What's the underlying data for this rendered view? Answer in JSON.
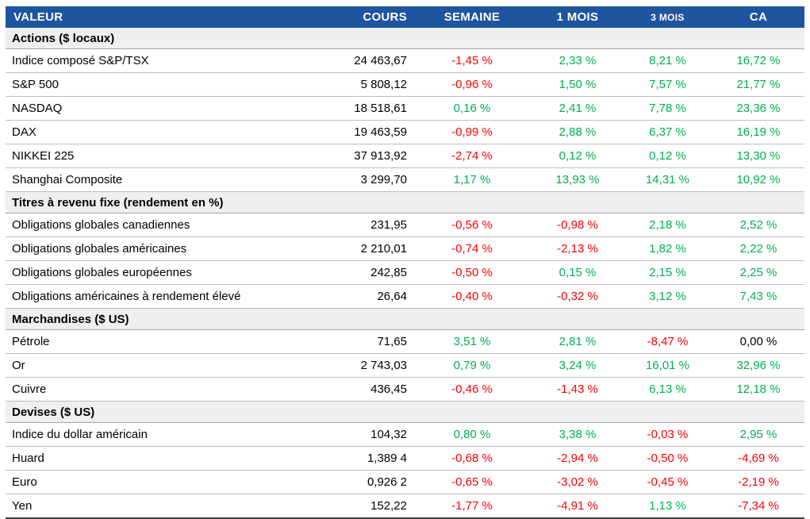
{
  "colors": {
    "header_bg": "#1F549E",
    "section_bg": "#EFEFEF",
    "positive": "#00B050",
    "negative": "#FF0000",
    "neutral": "#000000"
  },
  "table": {
    "columns": [
      {
        "key": "valeur",
        "label": "VALEUR"
      },
      {
        "key": "cours",
        "label": "COURS"
      },
      {
        "key": "semaine",
        "label": "SEMAINE"
      },
      {
        "key": "1-mois",
        "label": "1 MOIS"
      },
      {
        "key": "3-mois",
        "label": "3 MOIS"
      },
      {
        "key": "ca",
        "label": "CA"
      }
    ],
    "sections": [
      {
        "title": "Actions ($ locaux)",
        "rows": [
          {
            "label": "Indice composé S&P/TSX",
            "cours": "24 463,67",
            "changes": [
              "-1,45 %",
              "2,33 %",
              "8,21 %",
              "16,72 %"
            ]
          },
          {
            "label": "S&P 500",
            "cours": "5 808,12",
            "changes": [
              "-0,96 %",
              "1,50 %",
              "7,57 %",
              "21,77 %"
            ]
          },
          {
            "label": "NASDAQ",
            "cours": "18 518,61",
            "changes": [
              "0,16 %",
              "2,41 %",
              "7,78 %",
              "23,36 %"
            ]
          },
          {
            "label": "DAX",
            "cours": "19 463,59",
            "changes": [
              "-0,99 %",
              "2,88 %",
              "6,37 %",
              "16,19 %"
            ]
          },
          {
            "label": "NIKKEI 225",
            "cours": "37 913,92",
            "changes": [
              "-2,74 %",
              "0,12 %",
              "0,12 %",
              "13,30 %"
            ]
          },
          {
            "label": "Shanghai Composite",
            "cours": "3 299,70",
            "changes": [
              "1,17 %",
              "13,93 %",
              "14,31 %",
              "10,92 %"
            ]
          }
        ]
      },
      {
        "title": "Titres à revenu fixe (rendement en %)",
        "rows": [
          {
            "label": "Obligations globales canadiennes",
            "cours": "231,95",
            "changes": [
              "-0,56 %",
              "-0,98 %",
              "2,18 %",
              "2,52 %"
            ]
          },
          {
            "label": "Obligations globales américaines",
            "cours": "2 210,01",
            "changes": [
              "-0,74 %",
              "-2,13 %",
              "1,82 %",
              "2,22 %"
            ]
          },
          {
            "label": "Obligations globales européennes",
            "cours": "242,85",
            "changes": [
              "-0,50 %",
              "0,15 %",
              "2,15 %",
              "2,25 %"
            ]
          },
          {
            "label": "Obligations américaines à rendement élevé",
            "cours": "26,64",
            "changes": [
              "-0,40 %",
              "-0,32 %",
              "3,12 %",
              "7,43 %"
            ]
          }
        ]
      },
      {
        "title": "Marchandises ($ US)",
        "rows": [
          {
            "label": "Pétrole",
            "cours": "71,65",
            "changes": [
              "3,51 %",
              "2,81 %",
              "-8,47 %",
              "0,00 %"
            ]
          },
          {
            "label": "Or",
            "cours": "2 743,03",
            "changes": [
              "0,79 %",
              "3,24 %",
              "16,01 %",
              "32,96 %"
            ]
          },
          {
            "label": "Cuivre",
            "cours": "436,45",
            "changes": [
              "-0,46 %",
              "-1,43 %",
              "6,13 %",
              "12,18 %"
            ]
          }
        ]
      },
      {
        "title": "Devises ($ US)",
        "rows": [
          {
            "label": "Indice du dollar américain",
            "cours": "104,32",
            "changes": [
              "0,80 %",
              "3,38 %",
              "-0,03 %",
              "2,95 %"
            ]
          },
          {
            "label": "Huard",
            "cours": "1,389 4",
            "changes": [
              "-0,68 %",
              "-2,94 %",
              "-0,50 %",
              "-4,69 %"
            ]
          },
          {
            "label": "Euro",
            "cours": "0,926 2",
            "changes": [
              "-0,65 %",
              "-3,02 %",
              "-0,45 %",
              "-2,19 %"
            ]
          },
          {
            "label": "Yen",
            "cours": "152,22",
            "changes": [
              "-1,77 %",
              "-4,91 %",
              "1,13 %",
              "-7,34 %"
            ]
          }
        ]
      }
    ]
  }
}
